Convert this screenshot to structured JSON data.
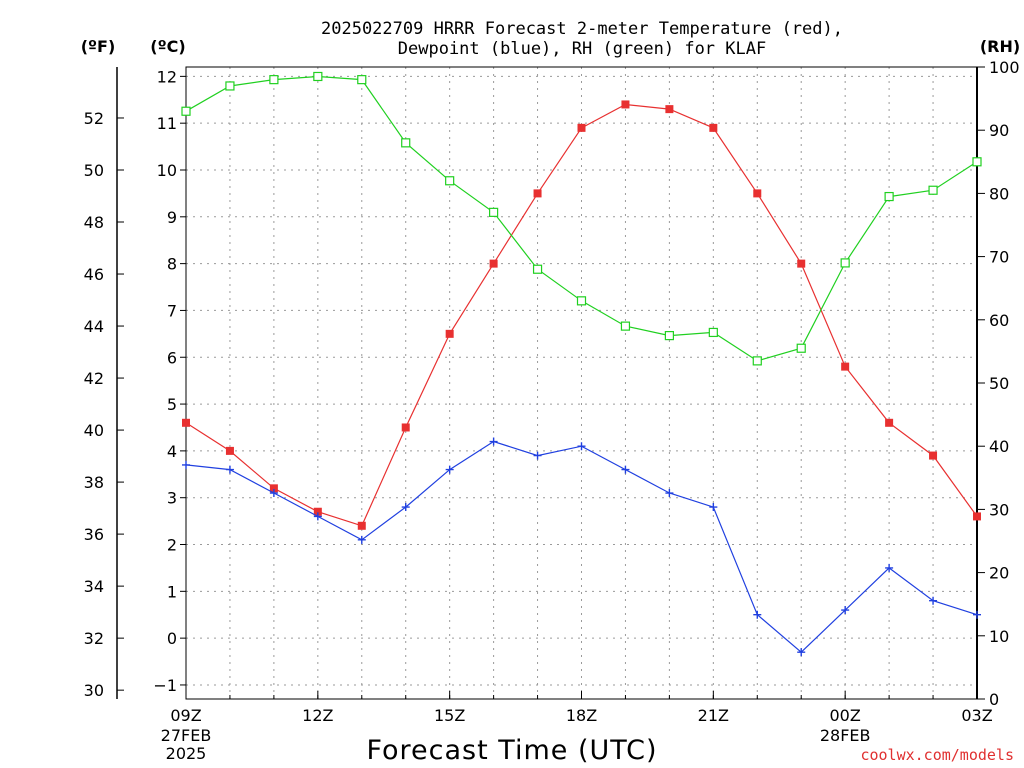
{
  "chart_data": {
    "type": "line",
    "title_lines": [
      "2025022709 HRRR Forecast 2-meter Temperature (red),",
      "Dewpoint (blue), RH (green) for KLAF"
    ],
    "units": {
      "left_outer": "(ºF)",
      "left_inner": "(ºC)",
      "right": "(RH)"
    },
    "xlabel": "Forecast Time (UTC)",
    "credit": "coolwx.com/models",
    "x_hours": [
      0,
      1,
      2,
      3,
      4,
      5,
      6,
      7,
      8,
      9,
      10,
      11,
      12,
      13,
      14,
      15,
      16,
      17,
      18
    ],
    "x_ticks": [
      {
        "hour": 0,
        "label": "09Z",
        "sub": [
          "27FEB",
          "2025"
        ]
      },
      {
        "hour": 3,
        "label": "12Z",
        "sub": []
      },
      {
        "hour": 6,
        "label": "15Z",
        "sub": []
      },
      {
        "hour": 9,
        "label": "18Z",
        "sub": []
      },
      {
        "hour": 12,
        "label": "21Z",
        "sub": []
      },
      {
        "hour": 15,
        "label": "00Z",
        "sub": [
          "28FEB"
        ]
      },
      {
        "hour": 18,
        "label": "03Z",
        "sub": []
      }
    ],
    "y_celsius": {
      "ylim": [
        -1.3,
        12.2
      ],
      "ticks": [
        "-1",
        "0",
        "1",
        "2",
        "3",
        "4",
        "5",
        "6",
        "7",
        "8",
        "9",
        "10",
        "11",
        "12"
      ]
    },
    "y_fahrenheit": {
      "ticks": [
        "30",
        "32",
        "34",
        "36",
        "38",
        "40",
        "42",
        "44",
        "46",
        "48",
        "50",
        "52"
      ]
    },
    "y_rh": {
      "ylim": [
        0,
        100
      ],
      "ticks": [
        "0",
        "10",
        "20",
        "30",
        "40",
        "50",
        "60",
        "70",
        "80",
        "90",
        "100"
      ]
    },
    "grid": true,
    "series": [
      {
        "name": "Temperature",
        "unit": "C",
        "color": "#e83030",
        "marker": "filled-square",
        "values": [
          4.6,
          4.0,
          3.2,
          2.7,
          2.4,
          4.5,
          6.5,
          8.0,
          9.5,
          10.9,
          11.4,
          11.3,
          10.9,
          9.5,
          8.0,
          5.8,
          4.6,
          3.9,
          2.6
        ]
      },
      {
        "name": "Dewpoint",
        "unit": "C",
        "color": "#2040e0",
        "marker": "plus",
        "values": [
          3.7,
          3.6,
          3.1,
          2.6,
          2.1,
          2.8,
          3.6,
          4.2,
          3.9,
          4.1,
          3.6,
          3.1,
          2.8,
          0.5,
          -0.3,
          0.6,
          1.5,
          0.8,
          0.5
        ]
      },
      {
        "name": "RH",
        "unit": "%",
        "color": "#20d020",
        "marker": "hollow-square",
        "values": [
          93,
          97,
          98,
          98.5,
          98,
          88,
          82,
          77,
          68,
          63,
          59,
          57.5,
          58,
          53.5,
          55.5,
          69,
          79.5,
          80.5,
          85
        ]
      }
    ]
  }
}
